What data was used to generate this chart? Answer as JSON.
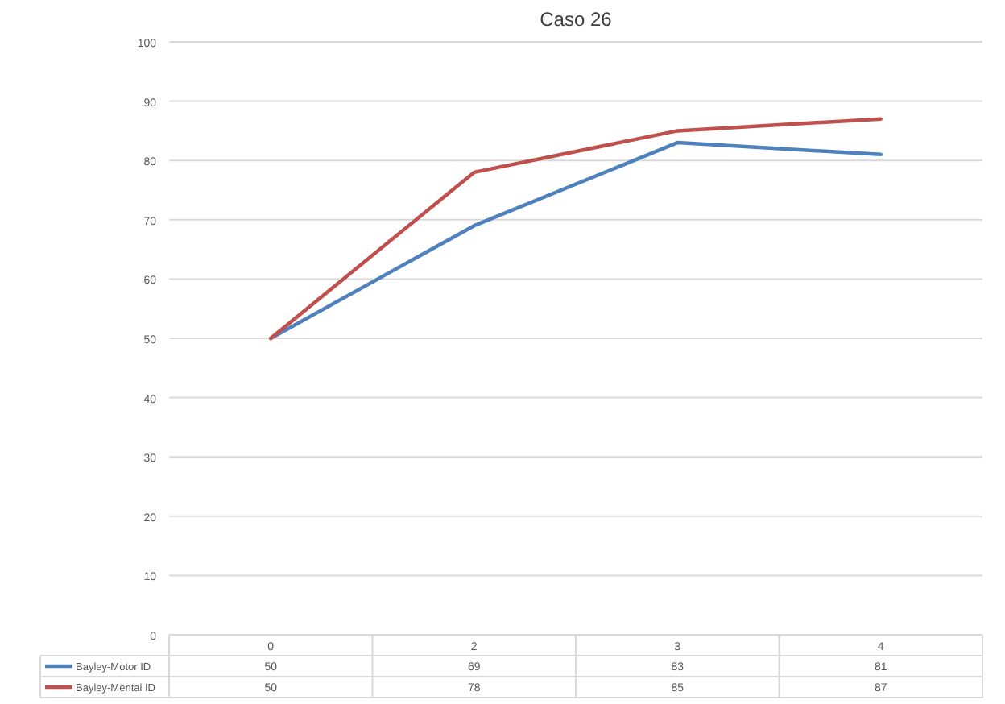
{
  "chart_data": {
    "type": "line",
    "title": "Caso 26",
    "categories": [
      "0",
      "2",
      "3",
      "4"
    ],
    "series": [
      {
        "name": "Bayley-Motor ID",
        "color": "#4f81bd",
        "values": [
          50,
          69,
          83,
          81
        ]
      },
      {
        "name": "Bayley-Mental ID",
        "color": "#c0504d",
        "values": [
          50,
          78,
          85,
          87
        ]
      }
    ],
    "ylim": [
      0,
      100
    ],
    "yticks": [
      0,
      10,
      20,
      30,
      40,
      50,
      60,
      70,
      80,
      90,
      100
    ],
    "grid": "y",
    "legend": "bottom",
    "data_labels": true,
    "marker": "none",
    "line_style": "solid"
  }
}
